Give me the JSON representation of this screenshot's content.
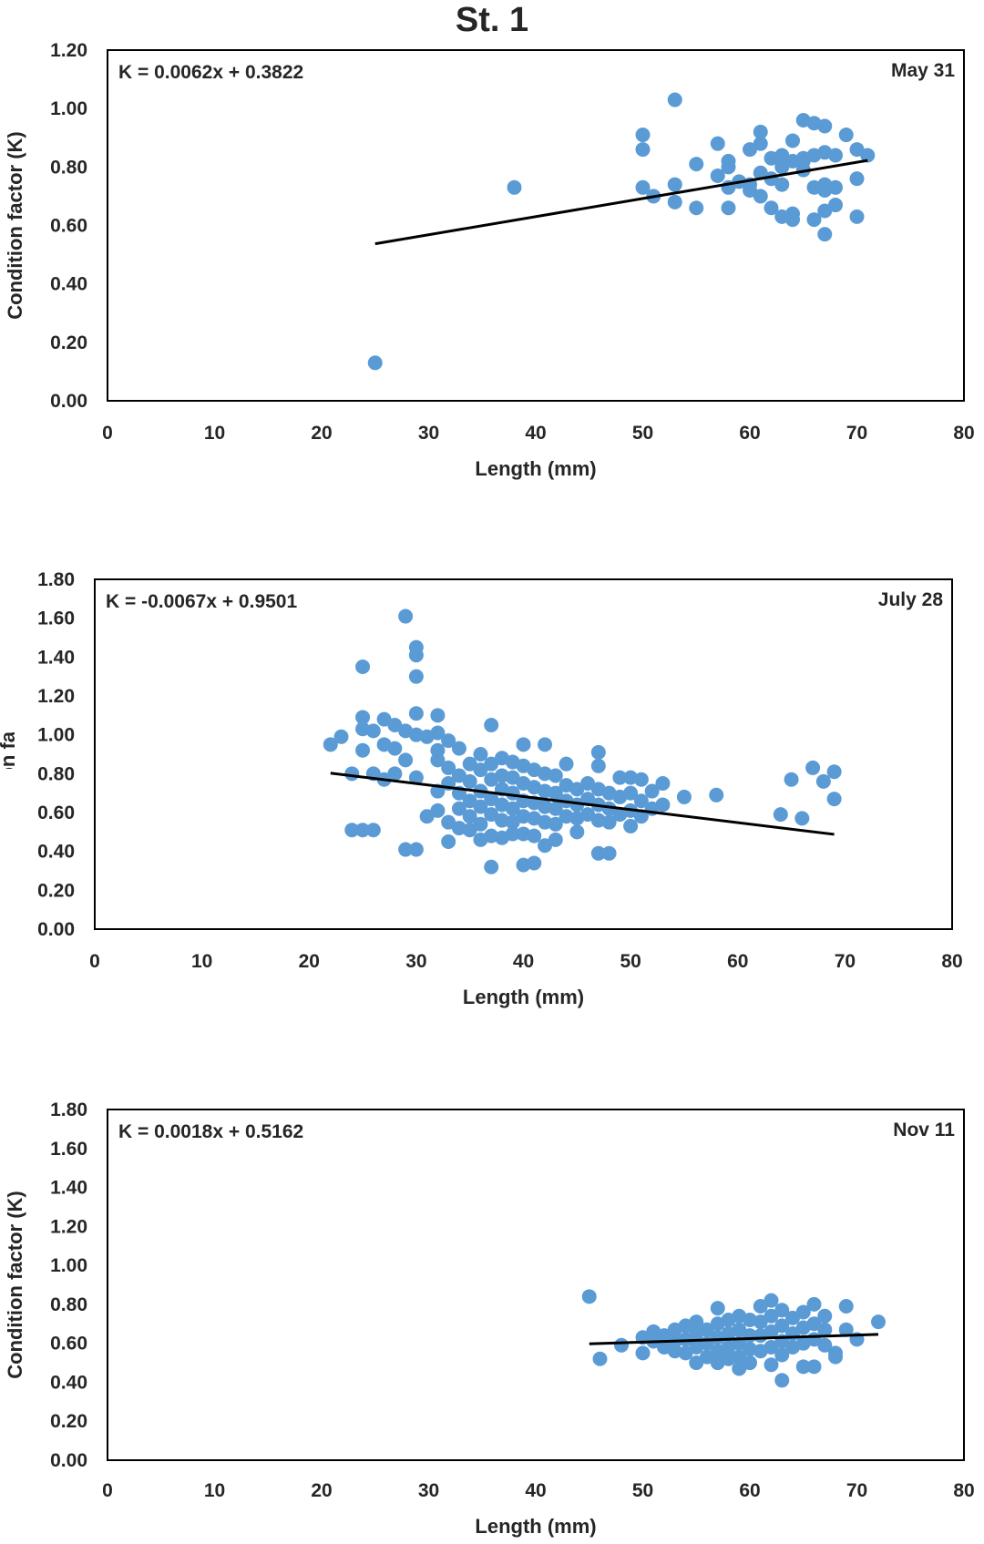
{
  "title": "St. 1",
  "colors": {
    "point": "#5b9bd5",
    "trendline": "#000000",
    "frame": "#000000"
  },
  "chart_data": [
    {
      "type": "scatter",
      "label": "May 31",
      "equation": "K = 0.0062x + 0.3822",
      "trend": {
        "slope": 0.0062,
        "intercept": 0.3822,
        "x_range": [
          25,
          71
        ]
      },
      "xlabel": "Length (mm)",
      "ylabel": "Condition factor (K)",
      "xlim": [
        0,
        80
      ],
      "ylim": [
        0,
        1.2
      ],
      "x_ticks": [
        "0",
        "10",
        "20",
        "30",
        "40",
        "50",
        "60",
        "70",
        "80"
      ],
      "y_ticks": [
        "0.00",
        "0.20",
        "0.40",
        "0.60",
        "0.80",
        "1.00",
        "1.20"
      ],
      "points": [
        [
          25,
          0.13
        ],
        [
          38,
          0.73
        ],
        [
          50,
          0.91
        ],
        [
          50,
          0.86
        ],
        [
          50,
          0.73
        ],
        [
          51,
          0.7
        ],
        [
          53,
          1.03
        ],
        [
          53,
          0.74
        ],
        [
          53,
          0.68
        ],
        [
          55,
          0.81
        ],
        [
          55,
          0.66
        ],
        [
          57,
          0.88
        ],
        [
          57,
          0.77
        ],
        [
          58,
          0.82
        ],
        [
          58,
          0.8
        ],
        [
          58,
          0.73
        ],
        [
          58,
          0.66
        ],
        [
          59,
          0.75
        ],
        [
          60,
          0.86
        ],
        [
          60,
          0.74
        ],
        [
          60,
          0.72
        ],
        [
          61,
          0.92
        ],
        [
          61,
          0.88
        ],
        [
          61,
          0.78
        ],
        [
          61,
          0.7
        ],
        [
          62,
          0.83
        ],
        [
          62,
          0.76
        ],
        [
          62,
          0.66
        ],
        [
          63,
          0.84
        ],
        [
          63,
          0.8
        ],
        [
          63,
          0.74
        ],
        [
          63,
          0.63
        ],
        [
          64,
          0.89
        ],
        [
          64,
          0.82
        ],
        [
          64,
          0.64
        ],
        [
          64,
          0.62
        ],
        [
          65,
          0.96
        ],
        [
          65,
          0.83
        ],
        [
          65,
          0.79
        ],
        [
          65,
          0.82
        ],
        [
          66,
          0.95
        ],
        [
          66,
          0.84
        ],
        [
          66,
          0.73
        ],
        [
          66,
          0.62
        ],
        [
          67,
          0.94
        ],
        [
          67,
          0.85
        ],
        [
          67,
          0.74
        ],
        [
          67,
          0.72
        ],
        [
          67,
          0.65
        ],
        [
          67,
          0.57
        ],
        [
          68,
          0.84
        ],
        [
          68,
          0.73
        ],
        [
          68,
          0.67
        ],
        [
          69,
          0.91
        ],
        [
          70,
          0.86
        ],
        [
          70,
          0.76
        ],
        [
          70,
          0.63
        ],
        [
          71,
          0.84
        ]
      ]
    },
    {
      "type": "scatter",
      "label": "July 28",
      "equation": "K = -0.0067x + 0.9501",
      "trend": {
        "slope": -0.0067,
        "intercept": 0.9501,
        "x_range": [
          22,
          69
        ]
      },
      "xlabel": "Length (mm)",
      "ylabel": "Condition factor (K)",
      "xlim": [
        0,
        80
      ],
      "ylim": [
        0,
        1.8
      ],
      "x_ticks": [
        "0",
        "10",
        "20",
        "30",
        "40",
        "50",
        "60",
        "70",
        "80"
      ],
      "y_ticks": [
        "0.00",
        "0.20",
        "0.40",
        "0.60",
        "0.80",
        "1.00",
        "1.20",
        "1.40",
        "1.60",
        "1.80"
      ],
      "points": [
        [
          22,
          0.95
        ],
        [
          23,
          0.99
        ],
        [
          24,
          0.8
        ],
        [
          24,
          0.51
        ],
        [
          25,
          1.35
        ],
        [
          25,
          1.09
        ],
        [
          25,
          1.03
        ],
        [
          25,
          0.92
        ],
        [
          25,
          0.51
        ],
        [
          26,
          1.02
        ],
        [
          26,
          0.8
        ],
        [
          26,
          0.51
        ],
        [
          27,
          1.08
        ],
        [
          27,
          0.95
        ],
        [
          27,
          0.77
        ],
        [
          28,
          1.05
        ],
        [
          28,
          0.93
        ],
        [
          28,
          0.8
        ],
        [
          29,
          1.61
        ],
        [
          29,
          1.02
        ],
        [
          29,
          0.87
        ],
        [
          29,
          0.41
        ],
        [
          30,
          1.45
        ],
        [
          30,
          1.41
        ],
        [
          30,
          1.3
        ],
        [
          30,
          1.11
        ],
        [
          30,
          1.0
        ],
        [
          30,
          0.78
        ],
        [
          30,
          0.41
        ],
        [
          31,
          0.99
        ],
        [
          31,
          0.58
        ],
        [
          32,
          1.1
        ],
        [
          32,
          1.01
        ],
        [
          32,
          0.92
        ],
        [
          32,
          0.87
        ],
        [
          32,
          0.71
        ],
        [
          32,
          0.61
        ],
        [
          33,
          0.97
        ],
        [
          33,
          0.83
        ],
        [
          33,
          0.75
        ],
        [
          33,
          0.55
        ],
        [
          33,
          0.45
        ],
        [
          34,
          0.93
        ],
        [
          34,
          0.79
        ],
        [
          34,
          0.7
        ],
        [
          34,
          0.62
        ],
        [
          34,
          0.52
        ],
        [
          35,
          0.85
        ],
        [
          35,
          0.76
        ],
        [
          35,
          0.66
        ],
        [
          35,
          0.58
        ],
        [
          35,
          0.51
        ],
        [
          36,
          0.9
        ],
        [
          36,
          0.82
        ],
        [
          36,
          0.71
        ],
        [
          36,
          0.63
        ],
        [
          36,
          0.54
        ],
        [
          36,
          0.46
        ],
        [
          37,
          1.05
        ],
        [
          37,
          0.85
        ],
        [
          37,
          0.77
        ],
        [
          37,
          0.67
        ],
        [
          37,
          0.59
        ],
        [
          37,
          0.48
        ],
        [
          37,
          0.32
        ],
        [
          38,
          0.88
        ],
        [
          38,
          0.79
        ],
        [
          38,
          0.72
        ],
        [
          38,
          0.64
        ],
        [
          38,
          0.56
        ],
        [
          38,
          0.47
        ],
        [
          39,
          0.86
        ],
        [
          39,
          0.78
        ],
        [
          39,
          0.7
        ],
        [
          39,
          0.62
        ],
        [
          39,
          0.55
        ],
        [
          39,
          0.49
        ],
        [
          40,
          0.95
        ],
        [
          40,
          0.84
        ],
        [
          40,
          0.75
        ],
        [
          40,
          0.66
        ],
        [
          40,
          0.58
        ],
        [
          40,
          0.49
        ],
        [
          40,
          0.33
        ],
        [
          41,
          0.82
        ],
        [
          41,
          0.73
        ],
        [
          41,
          0.65
        ],
        [
          41,
          0.57
        ],
        [
          41,
          0.48
        ],
        [
          41,
          0.34
        ],
        [
          42,
          0.95
        ],
        [
          42,
          0.8
        ],
        [
          42,
          0.71
        ],
        [
          42,
          0.63
        ],
        [
          42,
          0.55
        ],
        [
          42,
          0.43
        ],
        [
          43,
          0.79
        ],
        [
          43,
          0.7
        ],
        [
          43,
          0.62
        ],
        [
          43,
          0.54
        ],
        [
          43,
          0.46
        ],
        [
          44,
          0.85
        ],
        [
          44,
          0.74
        ],
        [
          44,
          0.66
        ],
        [
          44,
          0.58
        ],
        [
          45,
          0.72
        ],
        [
          45,
          0.64
        ],
        [
          45,
          0.57
        ],
        [
          45,
          0.5
        ],
        [
          46,
          0.75
        ],
        [
          46,
          0.67
        ],
        [
          46,
          0.59
        ],
        [
          47,
          0.91
        ],
        [
          47,
          0.84
        ],
        [
          47,
          0.72
        ],
        [
          47,
          0.64
        ],
        [
          47,
          0.56
        ],
        [
          47,
          0.39
        ],
        [
          48,
          0.7
        ],
        [
          48,
          0.62
        ],
        [
          48,
          0.55
        ],
        [
          48,
          0.39
        ],
        [
          49,
          0.78
        ],
        [
          49,
          0.68
        ],
        [
          49,
          0.59
        ],
        [
          50,
          0.78
        ],
        [
          50,
          0.7
        ],
        [
          50,
          0.61
        ],
        [
          50,
          0.53
        ],
        [
          51,
          0.77
        ],
        [
          51,
          0.66
        ],
        [
          51,
          0.58
        ],
        [
          52,
          0.71
        ],
        [
          52,
          0.62
        ],
        [
          53,
          0.75
        ],
        [
          53,
          0.64
        ],
        [
          55,
          0.68
        ],
        [
          58,
          0.69
        ],
        [
          64,
          0.59
        ],
        [
          65,
          0.77
        ],
        [
          66,
          0.57
        ],
        [
          67,
          0.83
        ],
        [
          68,
          0.76
        ],
        [
          69,
          0.81
        ],
        [
          69,
          0.67
        ]
      ]
    },
    {
      "type": "scatter",
      "label": "Nov 11",
      "equation": "K = 0.0018x + 0.5162",
      "trend": {
        "slope": 0.0018,
        "intercept": 0.5162,
        "x_range": [
          45,
          72
        ]
      },
      "xlabel": "Length (mm)",
      "ylabel": "Condition factor (K)",
      "xlim": [
        0,
        80
      ],
      "ylim": [
        0,
        1.8
      ],
      "x_ticks": [
        "0",
        "10",
        "20",
        "30",
        "40",
        "50",
        "60",
        "70",
        "80"
      ],
      "y_ticks": [
        "0.00",
        "0.20",
        "0.40",
        "0.60",
        "0.80",
        "1.00",
        "1.20",
        "1.40",
        "1.60",
        "1.80"
      ],
      "points": [
        [
          45,
          0.84
        ],
        [
          46,
          0.52
        ],
        [
          48,
          0.59
        ],
        [
          50,
          0.63
        ],
        [
          50,
          0.55
        ],
        [
          51,
          0.61
        ],
        [
          51,
          0.66
        ],
        [
          52,
          0.58
        ],
        [
          52,
          0.64
        ],
        [
          53,
          0.67
        ],
        [
          53,
          0.56
        ],
        [
          53,
          0.61
        ],
        [
          54,
          0.69
        ],
        [
          54,
          0.62
        ],
        [
          54,
          0.55
        ],
        [
          55,
          0.71
        ],
        [
          55,
          0.65
        ],
        [
          55,
          0.58
        ],
        [
          55,
          0.5
        ],
        [
          56,
          0.67
        ],
        [
          56,
          0.6
        ],
        [
          56,
          0.53
        ],
        [
          57,
          0.78
        ],
        [
          57,
          0.7
        ],
        [
          57,
          0.63
        ],
        [
          57,
          0.56
        ],
        [
          57,
          0.5
        ],
        [
          58,
          0.72
        ],
        [
          58,
          0.65
        ],
        [
          58,
          0.58
        ],
        [
          58,
          0.52
        ],
        [
          59,
          0.74
        ],
        [
          59,
          0.67
        ],
        [
          59,
          0.6
        ],
        [
          59,
          0.53
        ],
        [
          59,
          0.47
        ],
        [
          60,
          0.72
        ],
        [
          60,
          0.64
        ],
        [
          60,
          0.57
        ],
        [
          60,
          0.5
        ],
        [
          61,
          0.79
        ],
        [
          61,
          0.71
        ],
        [
          61,
          0.64
        ],
        [
          61,
          0.56
        ],
        [
          62,
          0.82
        ],
        [
          62,
          0.74
        ],
        [
          62,
          0.66
        ],
        [
          62,
          0.58
        ],
        [
          62,
          0.49
        ],
        [
          63,
          0.77
        ],
        [
          63,
          0.69
        ],
        [
          63,
          0.61
        ],
        [
          63,
          0.54
        ],
        [
          63,
          0.41
        ],
        [
          64,
          0.73
        ],
        [
          64,
          0.65
        ],
        [
          64,
          0.58
        ],
        [
          65,
          0.76
        ],
        [
          65,
          0.68
        ],
        [
          65,
          0.6
        ],
        [
          65,
          0.48
        ],
        [
          66,
          0.8
        ],
        [
          66,
          0.7
        ],
        [
          66,
          0.62
        ],
        [
          66,
          0.48
        ],
        [
          67,
          0.74
        ],
        [
          67,
          0.67
        ],
        [
          67,
          0.59
        ],
        [
          68,
          0.55
        ],
        [
          68,
          0.53
        ],
        [
          69,
          0.79
        ],
        [
          69,
          0.67
        ],
        [
          70,
          0.62
        ],
        [
          72,
          0.71
        ]
      ]
    }
  ]
}
